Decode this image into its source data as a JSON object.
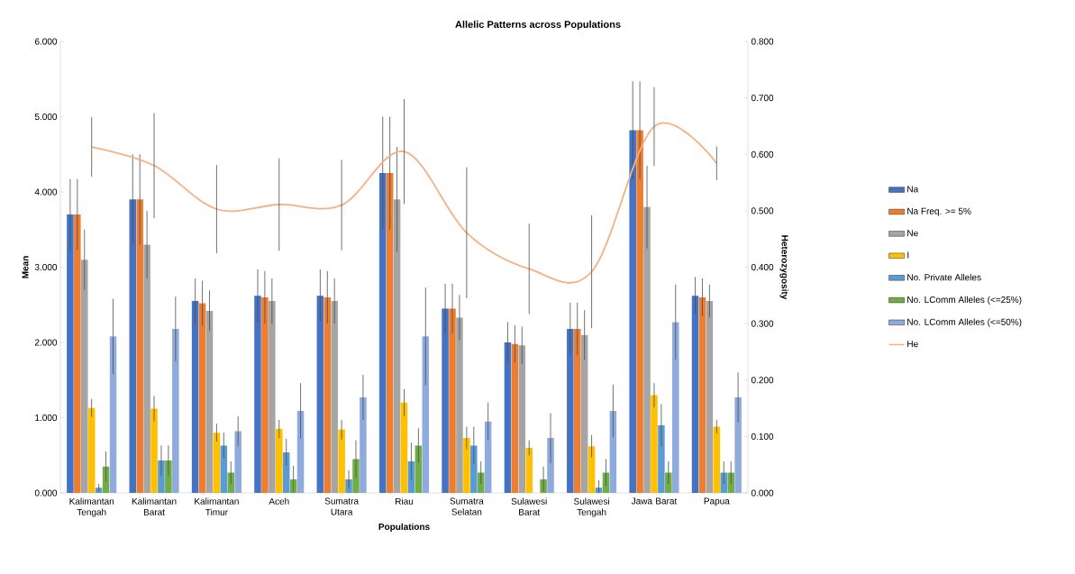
{
  "chart_data": {
    "type": "bar",
    "title": "Allelic Patterns across Populations",
    "xlabel": "Populations",
    "ylabel": "Mean",
    "y2label": "Heterozygosity",
    "categories": [
      "Kalimantan Tengah",
      "Kalimantan Barat",
      "Kalimantan Timur",
      "Aceh",
      "Sumatra Utara",
      "Riau",
      "Sumatra Selatan",
      "Sulawesi Barat",
      "Sulawesi Tengah",
      "Jawa Barat",
      "Papua"
    ],
    "series": [
      {
        "name": "Na",
        "color": "#4472c4",
        "values": [
          3.7,
          3.9,
          2.55,
          2.62,
          2.62,
          4.25,
          2.45,
          2.0,
          2.18,
          4.82,
          2.62
        ],
        "errors": [
          0.47,
          0.6,
          0.3,
          0.35,
          0.35,
          0.75,
          0.33,
          0.27,
          0.35,
          0.65,
          0.25
        ]
      },
      {
        "name": "Na Freq. >= 5%",
        "color": "#ed7d31",
        "values": [
          3.7,
          3.9,
          2.52,
          2.6,
          2.6,
          4.25,
          2.45,
          1.98,
          2.18,
          4.82,
          2.6
        ],
        "errors": [
          0.47,
          0.6,
          0.3,
          0.35,
          0.35,
          0.75,
          0.33,
          0.25,
          0.35,
          0.65,
          0.25
        ]
      },
      {
        "name": "Ne",
        "color": "#a5a5a5",
        "values": [
          3.1,
          3.3,
          2.42,
          2.55,
          2.55,
          3.9,
          2.33,
          1.96,
          2.1,
          3.8,
          2.55
        ],
        "errors": [
          0.4,
          0.45,
          0.27,
          0.3,
          0.3,
          0.7,
          0.3,
          0.25,
          0.33,
          0.55,
          0.22
        ]
      },
      {
        "name": "I",
        "color": "#ffc000",
        "values": [
          1.13,
          1.12,
          0.8,
          0.85,
          0.84,
          1.2,
          0.73,
          0.6,
          0.62,
          1.3,
          0.88
        ],
        "errors": [
          0.12,
          0.17,
          0.12,
          0.12,
          0.13,
          0.18,
          0.15,
          0.1,
          0.15,
          0.16,
          0.09
        ]
      },
      {
        "name": "No. Private Alleles",
        "color": "#5b9bd5",
        "values": [
          0.07,
          0.43,
          0.63,
          0.54,
          0.18,
          0.42,
          0.63,
          0.0,
          0.07,
          0.9,
          0.27
        ],
        "errors": [
          0.05,
          0.2,
          0.17,
          0.18,
          0.12,
          0.25,
          0.25,
          null,
          0.1,
          0.28,
          0.15
        ]
      },
      {
        "name": "No. LComm Alleles (<=25%)",
        "color": "#70ad47",
        "values": [
          0.35,
          0.43,
          0.27,
          0.18,
          0.45,
          0.63,
          0.27,
          0.18,
          0.27,
          0.27,
          0.27
        ],
        "errors": [
          0.2,
          0.2,
          0.15,
          0.18,
          0.25,
          0.23,
          0.15,
          0.17,
          0.18,
          0.15,
          0.15
        ]
      },
      {
        "name": "No. LComm Alleles (<=50%)",
        "color": "#8faadc",
        "values": [
          2.08,
          2.18,
          0.82,
          1.09,
          1.27,
          2.08,
          0.95,
          0.73,
          1.09,
          2.27,
          1.27
        ],
        "errors": [
          0.5,
          0.43,
          0.2,
          0.37,
          0.3,
          0.65,
          0.25,
          0.33,
          0.35,
          0.5,
          0.33
        ]
      },
      {
        "name": "He",
        "type": "line",
        "axis": "y2",
        "color": "#f4b183",
        "values": [
          0.613,
          0.58,
          0.503,
          0.511,
          0.51,
          0.605,
          0.461,
          0.397,
          0.392,
          0.649,
          0.584
        ],
        "errors": [
          0.053,
          0.093,
          0.078,
          0.082,
          0.08,
          0.093,
          0.116,
          0.08,
          0.1,
          0.07,
          0.03
        ]
      }
    ],
    "ylim": [
      0,
      6
    ],
    "yticks": [
      {
        "value": 0,
        "label": "0.000"
      },
      {
        "value": 1,
        "label": "1.000"
      },
      {
        "value": 2,
        "label": "2.000"
      },
      {
        "value": 3,
        "label": "3.000"
      },
      {
        "value": 4,
        "label": "4.000"
      },
      {
        "value": 5,
        "label": "5.000"
      },
      {
        "value": 6,
        "label": "6.000"
      }
    ],
    "y2lim": [
      0,
      0.8
    ],
    "y2ticks": [
      {
        "value": 0,
        "label": "0.000"
      },
      {
        "value": 0.1,
        "label": "0.100"
      },
      {
        "value": 0.2,
        "label": "0.200"
      },
      {
        "value": 0.3,
        "label": "0.300"
      },
      {
        "value": 0.4,
        "label": "0.400"
      },
      {
        "value": 0.5,
        "label": "0.500"
      },
      {
        "value": 0.6,
        "label": "0.600"
      },
      {
        "value": 0.7,
        "label": "0.700"
      },
      {
        "value": 0.8,
        "label": "0.800"
      }
    ],
    "legend": "right"
  }
}
